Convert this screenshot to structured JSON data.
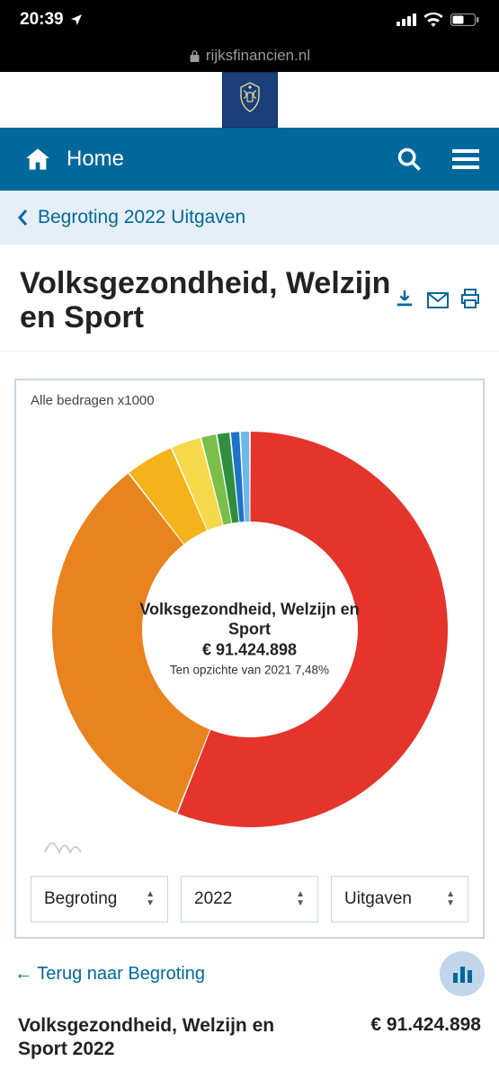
{
  "statusbar": {
    "time": "20:39"
  },
  "browser": {
    "domain": "rijksfinancien.nl"
  },
  "nav": {
    "home": "Home"
  },
  "breadcrumb": {
    "label": "Begroting 2022 Uitgaven"
  },
  "title": "Volksgezondheid, Welzijn en Sport",
  "chart": {
    "caption": "Alle bedragen x1000",
    "type": "donut",
    "center_title": "Volksgezondheid, Welzijn en Sport",
    "center_value": "€ 91.424.898",
    "center_delta": "Ten opzichte van 2021 7,48%",
    "inner_radius": 120,
    "outer_radius": 220,
    "background_color": "#ffffff",
    "start_angle_deg": -90,
    "slices": [
      {
        "label": "slice-1",
        "value": 56.0,
        "color": "#e4342b"
      },
      {
        "label": "slice-2",
        "value": 33.5,
        "color": "#e8831e"
      },
      {
        "label": "slice-3",
        "value": 4.0,
        "color": "#f4b21b"
      },
      {
        "label": "slice-4",
        "value": 2.5,
        "color": "#f6d84b"
      },
      {
        "label": "slice-5",
        "value": 1.3,
        "color": "#7bbf4a"
      },
      {
        "label": "slice-6",
        "value": 1.1,
        "color": "#2f8f3e"
      },
      {
        "label": "slice-7",
        "value": 0.8,
        "color": "#1e73c9"
      },
      {
        "label": "slice-8",
        "value": 0.8,
        "color": "#6fb8e8"
      }
    ]
  },
  "selects": {
    "type": "Begroting",
    "year": "2022",
    "flow": "Uitgaven"
  },
  "backlink": "Terug naar Begroting",
  "summary": {
    "label": "Volksgezondheid, Welzijn en Sport 2022",
    "value": "€ 91.424.898"
  },
  "colors": {
    "primary": "#01689b",
    "crumb_bg": "#e6eff7",
    "card_border": "#c7d7e6"
  }
}
